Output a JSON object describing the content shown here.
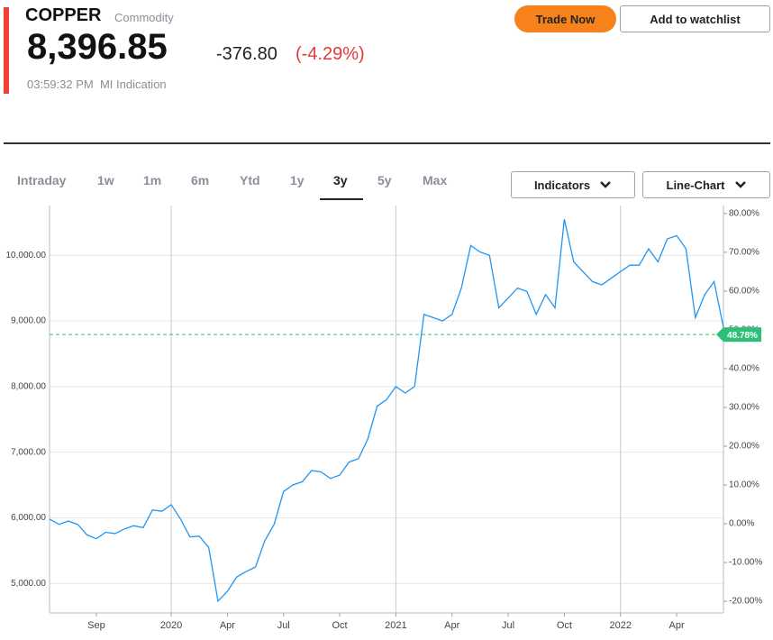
{
  "header": {
    "symbol": "COPPER",
    "kind": "Commodity",
    "price": "8,396.85",
    "change": "-376.80",
    "change_pct": "(-4.29%)",
    "time": "03:59:32 PM",
    "source": "MI Indication",
    "actions": [
      "Trade Now",
      "Add to watchlist"
    ]
  },
  "tabs": {
    "items": [
      "Intraday",
      "1w",
      "1m",
      "6m",
      "Ytd",
      "1y",
      "3y",
      "5y",
      "Max"
    ],
    "active": "3y"
  },
  "dropdowns": [
    "Indicators",
    "Line-Chart"
  ],
  "chart_data": {
    "type": "line",
    "categories": [
      null,
      null,
      null,
      null,
      null,
      "Sep",
      null,
      null,
      null,
      null,
      null,
      null,
      null,
      "2020",
      null,
      null,
      null,
      null,
      null,
      "Apr",
      null,
      null,
      null,
      null,
      null,
      "Jul",
      null,
      null,
      null,
      null,
      null,
      "Oct",
      null,
      null,
      null,
      null,
      null,
      "2021",
      null,
      null,
      null,
      null,
      null,
      "Apr",
      null,
      null,
      null,
      null,
      null,
      "Jul",
      null,
      null,
      null,
      null,
      null,
      "Oct",
      null,
      null,
      null,
      null,
      null,
      "2022",
      null,
      null,
      null,
      null,
      null,
      "Apr",
      null,
      null,
      null,
      null,
      null
    ],
    "series": [
      {
        "color": "#2196f3",
        "values": [
          5980,
          5900,
          5950,
          5900,
          5740,
          5680,
          5780,
          5760,
          5830,
          5880,
          5850,
          6120,
          6100,
          6200,
          5980,
          5710,
          5720,
          5550,
          4730,
          4880,
          5100,
          5180,
          5250,
          5650,
          5900,
          6400,
          6500,
          6550,
          6720,
          6700,
          6600,
          6650,
          6850,
          6900,
          7200,
          7700,
          7800,
          8000,
          7900,
          8000,
          9100,
          9050,
          9000,
          9100,
          9500,
          10150,
          10050,
          10000,
          9200,
          9350,
          9500,
          9450,
          9100,
          9400,
          9200,
          10550,
          9900,
          9750,
          9600,
          9550,
          9650,
          9750,
          9850,
          9850,
          10100,
          9900,
          10250,
          10300,
          10100,
          9050,
          9400,
          9600,
          8900
        ]
      }
    ],
    "ylim": [
      4550,
      10690
    ],
    "yticks": [
      {
        "value": 5000,
        "label": "5,000.00"
      },
      {
        "value": 6000,
        "label": "6,000.00"
      },
      {
        "value": 7000,
        "label": "7,000.00"
      },
      {
        "value": 8000,
        "label": "8,000.00"
      },
      {
        "value": 9000,
        "label": "9,000.00"
      },
      {
        "value": 10000,
        "label": "10,000.00"
      }
    ],
    "y2lim": [
      -23,
      80.9
    ],
    "y2ticks": [
      {
        "value": -20,
        "label": "-20.00%"
      },
      {
        "value": -10,
        "label": "-10.00%"
      },
      {
        "value": 0,
        "label": "0.00%"
      },
      {
        "value": 10,
        "label": "10.00%"
      },
      {
        "value": 20,
        "label": "20.00%"
      },
      {
        "value": 30,
        "label": "30.00%"
      },
      {
        "value": 40,
        "label": "40.00%"
      },
      {
        "value": 50,
        "label": "50.00%"
      },
      {
        "value": 60,
        "label": "60.00%"
      },
      {
        "value": 70,
        "label": "70.00%"
      },
      {
        "value": 80,
        "label": "80.00%"
      }
    ],
    "reference_line": {
      "value": 48.78,
      "label": "48.78%",
      "axis": "y2",
      "color": "#2dbe78"
    },
    "grid": true
  }
}
